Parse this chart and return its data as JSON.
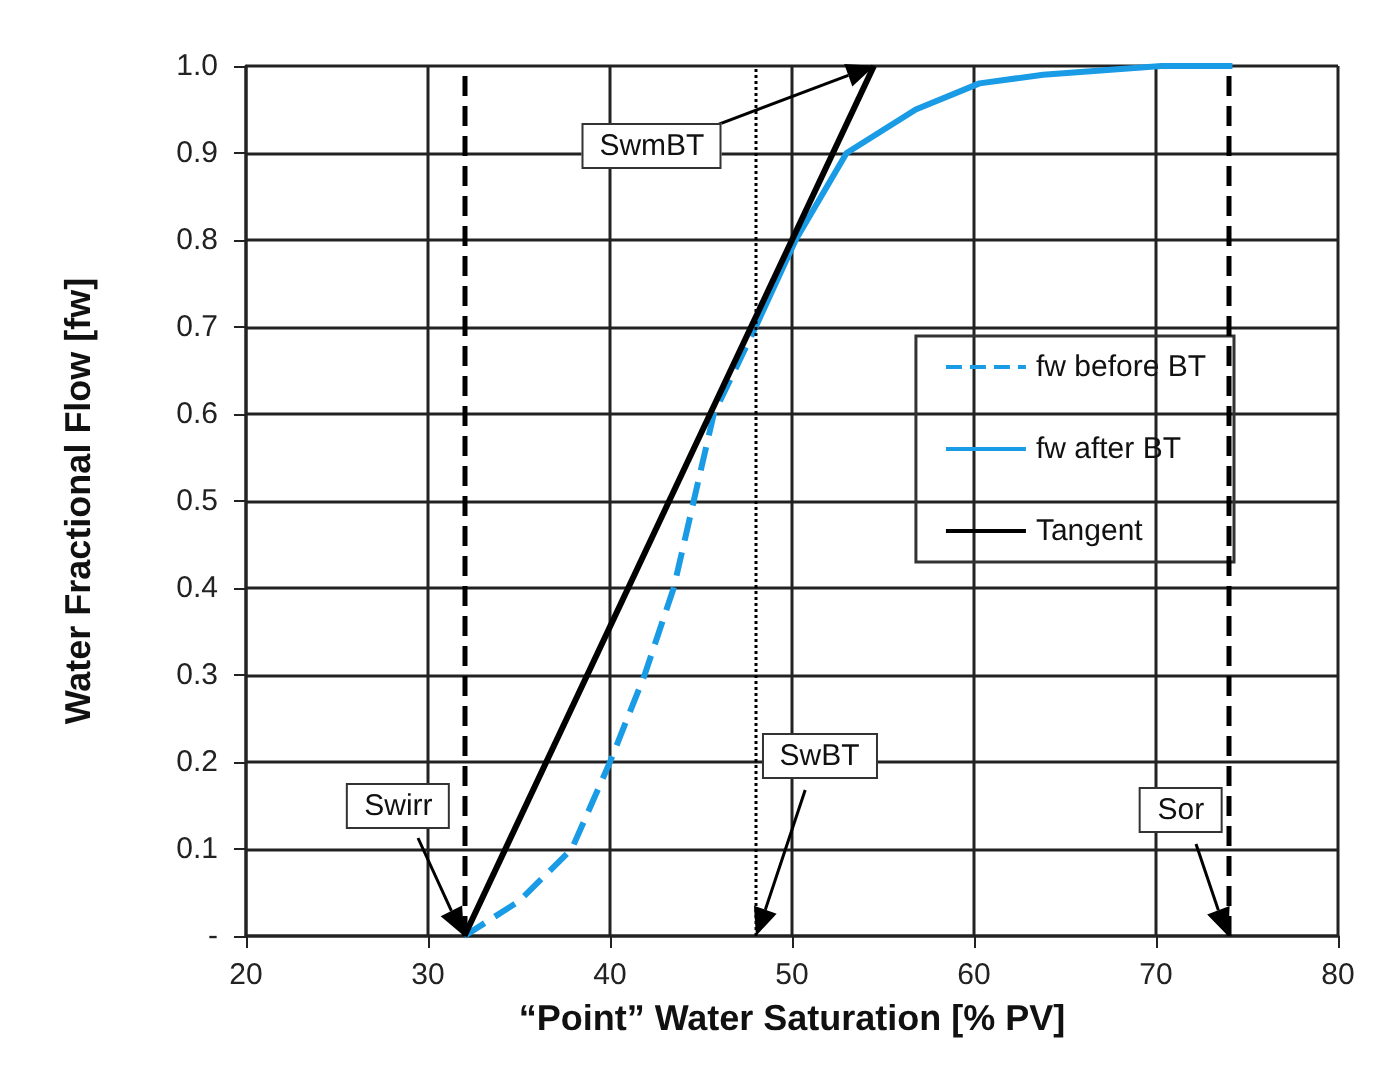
{
  "chart_data": {
    "type": "line",
    "xlabel": "“Point” Water Saturation [% PV]",
    "ylabel": "Water Fractional Flow [fw]",
    "xlim": [
      20,
      80
    ],
    "xticks": [
      20,
      30,
      40,
      50,
      60,
      70,
      80
    ],
    "ylim": [
      0,
      1
    ],
    "yticks": [
      {
        "value": 0,
        "label": "-"
      },
      0.1,
      0.2,
      0.3,
      0.4,
      0.5,
      0.6,
      0.7,
      0.8,
      0.9,
      {
        "value": 1,
        "label": "1.0"
      }
    ],
    "grid": true,
    "legend": "right",
    "marker": "none",
    "series": [
      {
        "name": "fw before BT",
        "color": "#1a9be6",
        "line_style": "dashed",
        "x": [
          32,
          35,
          37.9,
          40,
          41.9,
          43.5,
          44.6,
          45.7,
          48
        ],
        "values": [
          0,
          0.04,
          0.1,
          0.2,
          0.3,
          0.4,
          0.5,
          0.6,
          0.7
        ]
      },
      {
        "name": "fw after BT",
        "color": "#1a9be6",
        "line_style": "solid",
        "x": [
          48,
          50.2,
          53,
          56.8,
          60.3,
          63.8,
          70.3,
          74.2
        ],
        "values": [
          0.7,
          0.8,
          0.9,
          0.95,
          0.98,
          0.99,
          1,
          1
        ]
      },
      {
        "name": "Tangent",
        "color": "#000000",
        "line_style": "solid",
        "x": [
          32,
          54.5
        ],
        "values": [
          0,
          1
        ]
      }
    ],
    "ref_lines": [
      {
        "axis": "x",
        "value": 32,
        "label": "Swirr",
        "color": "#000000",
        "line_style": "dashed"
      },
      {
        "axis": "x",
        "value": 48,
        "label": "SwBT",
        "color": "#000000",
        "line_style": "dotted"
      },
      {
        "axis": "x",
        "value": 74,
        "label": "Sor",
        "color": "#000000",
        "line_style": "dashed"
      }
    ],
    "annotations": [
      "SwmBT"
    ]
  }
}
